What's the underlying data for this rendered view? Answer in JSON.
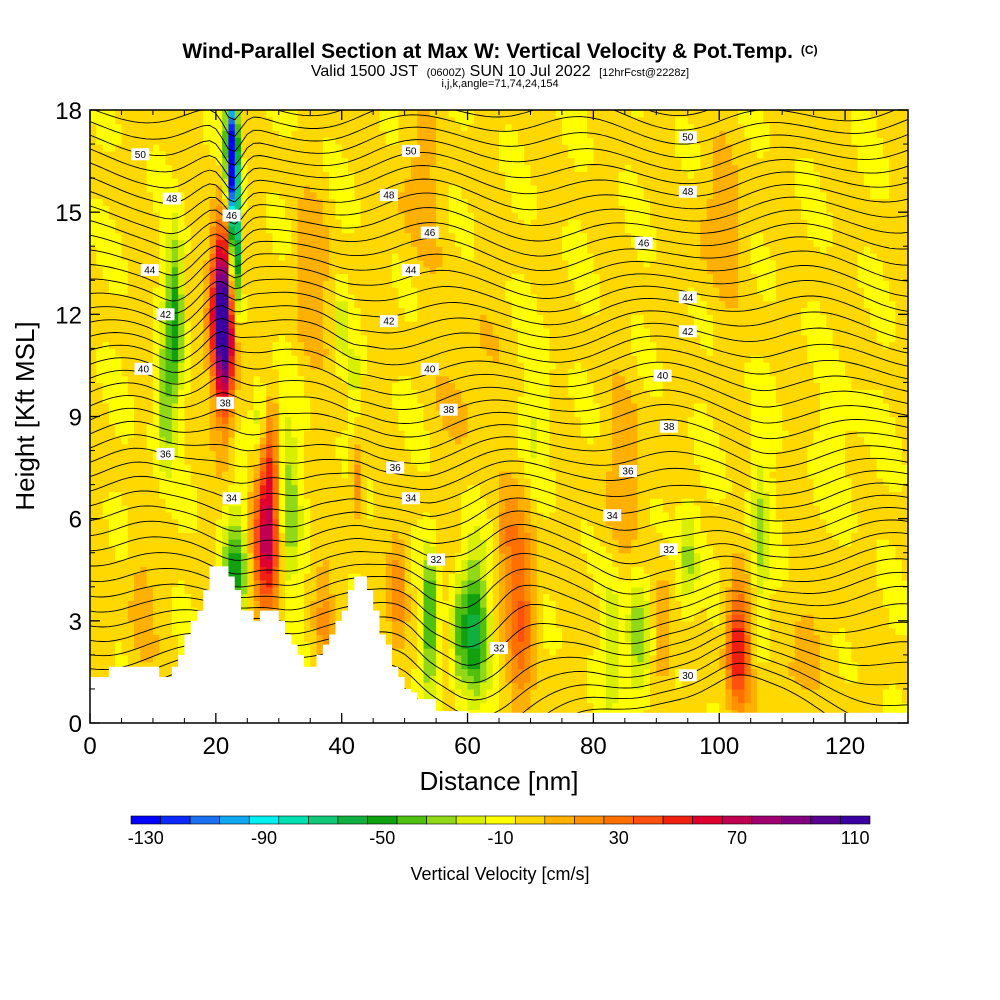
{
  "chart_data": {
    "type": "heatmap",
    "title": "Wind-Parallel Section at Max W: Vertical Velocity & Pot.Temp.",
    "copyright": "(C)",
    "subtitle": {
      "valid": "Valid 1500 JST",
      "utc": "(0600Z)",
      "date": "SUN 10 Jul 2022",
      "fcst": "[12hrFcst@2228z]"
    },
    "indices": "i,j,k,angle=71,74,24,154",
    "xlabel": "Distance [nm]",
    "ylabel": "Height [Kft MSL]",
    "xlim": [
      0,
      130
    ],
    "ylim": [
      0,
      18
    ],
    "x_ticks": [
      {
        "v": 0,
        "label": "0"
      },
      {
        "v": 20,
        "label": "20"
      },
      {
        "v": 40,
        "label": "40"
      },
      {
        "v": 60,
        "label": "60"
      },
      {
        "v": 80,
        "label": "80"
      },
      {
        "v": 100,
        "label": "100"
      },
      {
        "v": 120,
        "label": "120"
      }
    ],
    "y_ticks": [
      {
        "v": 0,
        "label": "0"
      },
      {
        "v": 3,
        "label": "3"
      },
      {
        "v": 6,
        "label": "6"
      },
      {
        "v": 9,
        "label": "9"
      },
      {
        "v": 12,
        "label": "12"
      },
      {
        "v": 15,
        "label": "15"
      },
      {
        "v": 18,
        "label": "18"
      }
    ],
    "colorbar": {
      "title": "Vertical Velocity [cm/s]",
      "min": -130,
      "max": 120,
      "step": 10,
      "labels": [
        {
          "v": -130,
          "label": "-130"
        },
        {
          "v": -90,
          "label": "-90"
        },
        {
          "v": -50,
          "label": "-50"
        },
        {
          "v": -10,
          "label": "-10"
        },
        {
          "v": 30,
          "label": "30"
        },
        {
          "v": 70,
          "label": "70"
        },
        {
          "v": 110,
          "label": "110"
        }
      ],
      "colors": [
        "#0000ff",
        "#0a28ff",
        "#1a70f0",
        "#10a8f0",
        "#00f0f0",
        "#00e0b0",
        "#10c878",
        "#10b040",
        "#10a010",
        "#50c010",
        "#90d818",
        "#d8f000",
        "#ffff00",
        "#ffd800",
        "#ffb000",
        "#ff9000",
        "#ff7000",
        "#ff5010",
        "#f02010",
        "#e00030",
        "#c00050",
        "#a00070",
        "#800080",
        "#5a0090",
        "#3a00a0"
      ]
    },
    "terrain": [
      [
        0,
        1.35
      ],
      [
        1,
        1.35
      ],
      [
        2,
        1.35
      ],
      [
        3,
        1.65
      ],
      [
        4,
        1.65
      ],
      [
        5,
        1.65
      ],
      [
        6,
        1.65
      ],
      [
        7,
        1.65
      ],
      [
        8,
        1.65
      ],
      [
        9,
        1.65
      ],
      [
        10,
        1.65
      ],
      [
        10.5,
        1.65
      ],
      [
        11,
        1.35
      ],
      [
        12,
        1.35
      ],
      [
        13,
        1.65
      ],
      [
        14,
        2.0
      ],
      [
        15,
        2.6
      ],
      [
        16,
        3.0
      ],
      [
        17,
        3.3
      ],
      [
        18,
        3.9
      ],
      [
        19,
        4.6
      ],
      [
        20,
        4.6
      ],
      [
        21,
        4.6
      ],
      [
        22,
        4.3
      ],
      [
        23,
        3.9
      ],
      [
        24,
        3.3
      ],
      [
        25,
        3.3
      ],
      [
        26,
        3.0
      ],
      [
        27,
        3.3
      ],
      [
        28,
        3.3
      ],
      [
        29,
        3.3
      ],
      [
        30,
        3.0
      ],
      [
        31,
        2.6
      ],
      [
        32,
        2.3
      ],
      [
        33,
        2.0
      ],
      [
        34,
        1.65
      ],
      [
        35,
        1.65
      ],
      [
        36,
        2.0
      ],
      [
        37,
        2.3
      ],
      [
        38,
        2.6
      ],
      [
        39,
        3.0
      ],
      [
        40,
        3.3
      ],
      [
        41,
        3.9
      ],
      [
        42,
        4.3
      ],
      [
        43,
        4.3
      ],
      [
        44,
        3.9
      ],
      [
        45,
        3.3
      ],
      [
        46,
        2.6
      ],
      [
        47,
        2.3
      ],
      [
        48,
        1.65
      ],
      [
        49,
        1.35
      ],
      [
        50,
        1.0
      ],
      [
        51,
        0.9
      ],
      [
        52,
        0.7
      ],
      [
        53,
        0.7
      ],
      [
        54,
        0.7
      ],
      [
        55,
        0.35
      ],
      [
        56,
        0.35
      ],
      [
        57,
        0.35
      ],
      [
        58,
        0.35
      ],
      [
        60,
        0.3
      ],
      [
        62,
        0.3
      ],
      [
        64,
        0.3
      ],
      [
        66,
        0.3
      ],
      [
        70,
        0.3
      ],
      [
        76,
        0.3
      ],
      [
        80,
        0.3
      ],
      [
        90,
        0.3
      ],
      [
        100,
        0.3
      ],
      [
        110,
        0.3
      ],
      [
        120,
        0.3
      ],
      [
        130,
        0.3
      ]
    ],
    "w_blobs": [
      {
        "x": 21,
        "y": 12.2,
        "sx": 1.2,
        "sy": 1.6,
        "a": 115
      },
      {
        "x": 21.5,
        "y": 10.5,
        "sx": 1.0,
        "sy": 1.6,
        "a": 40
      },
      {
        "x": 28,
        "y": 5.2,
        "sx": 1.5,
        "sy": 1.5,
        "a": 65
      },
      {
        "x": 28.5,
        "y": 7.5,
        "sx": 1.0,
        "sy": 1.2,
        "a": 35
      },
      {
        "x": 22.5,
        "y": 17.0,
        "sx": 0.6,
        "sy": 1.2,
        "a": -120
      },
      {
        "x": 23.0,
        "y": 14.8,
        "sx": 0.6,
        "sy": 1.4,
        "a": -90
      },
      {
        "x": 23.2,
        "y": 13.0,
        "sx": 0.5,
        "sy": 1.0,
        "a": -25
      },
      {
        "x": 13.5,
        "y": 12.2,
        "sx": 0.9,
        "sy": 1.5,
        "a": -45
      },
      {
        "x": 12,
        "y": 9.5,
        "sx": 1.2,
        "sy": 1.5,
        "a": -30
      },
      {
        "x": 23,
        "y": 4.5,
        "sx": 1.3,
        "sy": 1.2,
        "a": -45
      },
      {
        "x": 31.5,
        "y": 6.2,
        "sx": 1.2,
        "sy": 2.0,
        "a": -30
      },
      {
        "x": 27,
        "y": 9.0,
        "sx": 0.8,
        "sy": 0.8,
        "a": -25
      },
      {
        "x": 40,
        "y": 11.5,
        "sx": 0.7,
        "sy": 0.8,
        "a": -20
      },
      {
        "x": 42,
        "y": 10.0,
        "sx": 0.5,
        "sy": 0.8,
        "a": -20
      },
      {
        "x": 42.5,
        "y": 7.2,
        "sx": 0.7,
        "sy": 0.8,
        "a": 28
      },
      {
        "x": 54,
        "y": 3.0,
        "sx": 0.8,
        "sy": 1.5,
        "a": -45
      },
      {
        "x": 61,
        "y": 2.8,
        "sx": 1.5,
        "sy": 1.5,
        "a": -55
      },
      {
        "x": 58.5,
        "y": 2.5,
        "sx": 0.8,
        "sy": 1.2,
        "a": -25
      },
      {
        "x": 68.5,
        "y": 3.5,
        "sx": 1.6,
        "sy": 2.0,
        "a": 38
      },
      {
        "x": 66,
        "y": 5.5,
        "sx": 1.2,
        "sy": 0.8,
        "a": 18
      },
      {
        "x": 71,
        "y": 9.0,
        "sx": 1.5,
        "sy": 1.5,
        "a": -12
      },
      {
        "x": 83,
        "y": 2.5,
        "sx": 1.0,
        "sy": 1.5,
        "a": -20
      },
      {
        "x": 87,
        "y": 2.5,
        "sx": 1.3,
        "sy": 1.5,
        "a": -30
      },
      {
        "x": 91,
        "y": 2.5,
        "sx": 1.0,
        "sy": 1.2,
        "a": 22
      },
      {
        "x": 95,
        "y": 4.8,
        "sx": 1.2,
        "sy": 1.2,
        "a": -25
      },
      {
        "x": 103,
        "y": 2.2,
        "sx": 1.3,
        "sy": 1.2,
        "a": 60
      },
      {
        "x": 106.5,
        "y": 5.5,
        "sx": 1.0,
        "sy": 1.8,
        "a": -25
      },
      {
        "x": 35,
        "y": 13.0,
        "sx": 2.0,
        "sy": 1.5,
        "a": 18
      },
      {
        "x": 52,
        "y": 15.5,
        "sx": 2.5,
        "sy": 1.5,
        "a": 14
      },
      {
        "x": 100,
        "y": 14.5,
        "sx": 3.0,
        "sy": 1.5,
        "a": 14
      },
      {
        "x": 120,
        "y": 8.0,
        "sx": 3.0,
        "sy": 1.5,
        "a": -6
      },
      {
        "x": 8,
        "y": 3.5,
        "sx": 1.5,
        "sy": 1.5,
        "a": 14
      },
      {
        "x": 49,
        "y": 4.0,
        "sx": 1.0,
        "sy": 1.2,
        "a": 22
      },
      {
        "x": 37,
        "y": 3.0,
        "sx": 1.2,
        "sy": 1.5,
        "a": 18
      },
      {
        "x": 110,
        "y": 1.2,
        "sx": 2.0,
        "sy": 0.6,
        "a": 10
      },
      {
        "x": 115,
        "y": 3.0,
        "sx": 3.0,
        "sy": 1.5,
        "a": 8
      },
      {
        "x": 60,
        "y": 10.0,
        "sx": 3.0,
        "sy": 2.0,
        "a": 10
      },
      {
        "x": 85,
        "y": 7.0,
        "sx": 3.0,
        "sy": 2.0,
        "a": 12
      }
    ],
    "theta_levels": {
      "min": 29,
      "max": 51,
      "step": 0.5
    },
    "theta_labels": [
      {
        "x": 8,
        "y": 16.7,
        "label": "50"
      },
      {
        "x": 51,
        "y": 16.8,
        "label": "50"
      },
      {
        "x": 95,
        "y": 17.2,
        "label": "50"
      },
      {
        "x": 13,
        "y": 15.4,
        "label": "48"
      },
      {
        "x": 47.5,
        "y": 15.5,
        "label": "48"
      },
      {
        "x": 95,
        "y": 15.6,
        "label": "48"
      },
      {
        "x": 22.5,
        "y": 14.9,
        "label": "46"
      },
      {
        "x": 54,
        "y": 14.4,
        "label": "46"
      },
      {
        "x": 88,
        "y": 14.1,
        "label": "46"
      },
      {
        "x": 9.5,
        "y": 13.3,
        "label": "44"
      },
      {
        "x": 51,
        "y": 13.3,
        "label": "44"
      },
      {
        "x": 95,
        "y": 12.5,
        "label": "44"
      },
      {
        "x": 12,
        "y": 12.0,
        "label": "42"
      },
      {
        "x": 47.5,
        "y": 11.8,
        "label": "42"
      },
      {
        "x": 95,
        "y": 11.5,
        "label": "42"
      },
      {
        "x": 8.5,
        "y": 10.4,
        "label": "40"
      },
      {
        "x": 54,
        "y": 10.4,
        "label": "40"
      },
      {
        "x": 91,
        "y": 10.2,
        "label": "40"
      },
      {
        "x": 21.5,
        "y": 9.4,
        "label": "38"
      },
      {
        "x": 57,
        "y": 9.2,
        "label": "38"
      },
      {
        "x": 92,
        "y": 8.7,
        "label": "38"
      },
      {
        "x": 12,
        "y": 7.9,
        "label": "36"
      },
      {
        "x": 48.5,
        "y": 7.5,
        "label": "36"
      },
      {
        "x": 85.5,
        "y": 7.4,
        "label": "36"
      },
      {
        "x": 22.5,
        "y": 6.6,
        "label": "34"
      },
      {
        "x": 51,
        "y": 6.6,
        "label": "34"
      },
      {
        "x": 83,
        "y": 6.1,
        "label": "34"
      },
      {
        "x": 55,
        "y": 4.8,
        "label": "32"
      },
      {
        "x": 65,
        "y": 2.2,
        "label": "32"
      },
      {
        "x": 92,
        "y": 5.1,
        "label": "32"
      },
      {
        "x": 95,
        "y": 1.4,
        "label": "30"
      }
    ]
  }
}
